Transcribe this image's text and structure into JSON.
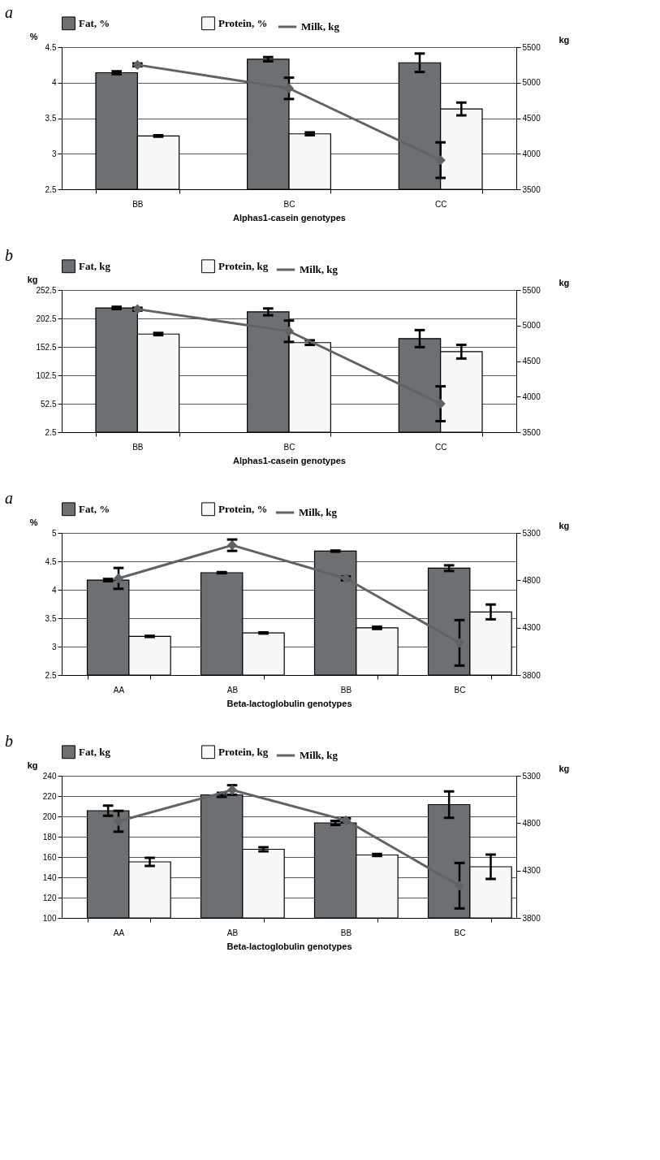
{
  "chart_data": [
    {
      "type": "bar",
      "annotations": [
        "a"
      ],
      "xlabel": "Alphas1-casein genotypes",
      "ylabel": "%",
      "y2label": "kg",
      "categories": [
        "BB",
        "BC",
        "CC"
      ],
      "series": [
        {
          "name": "Fat, %",
          "color": "#6d7073",
          "values": [
            4.14,
            4.33,
            4.28
          ],
          "errors": [
            0.02,
            0.03,
            0.13
          ]
        },
        {
          "name": "Protein,  %",
          "color": "#f8f8f8",
          "values": [
            3.25,
            3.28,
            3.63
          ],
          "errors": [
            0.01,
            0.02,
            0.09
          ]
        },
        {
          "name": "Milk, kg",
          "type": "line",
          "axis": "y2",
          "color": "#5f6366",
          "values": [
            5250,
            4920,
            3910
          ],
          "errors": [
            20,
            150,
            250
          ]
        }
      ],
      "ylim": [
        2.5,
        4.5
      ],
      "yticks": [
        2.5,
        3,
        3.5,
        4,
        4.5
      ],
      "y2lim": [
        3500,
        5500
      ],
      "y2ticks": [
        3500,
        4000,
        4500,
        5000,
        5500
      ],
      "grid": "y",
      "legend": "top",
      "marker": "diamond"
    },
    {
      "type": "bar",
      "annotations": [
        "b"
      ],
      "xlabel": "Alphas1-casein genotypes",
      "ylabel": "kg",
      "y2label": "kg",
      "categories": [
        "BB",
        "BC",
        "CC"
      ],
      "series": [
        {
          "name": "Fat, kg",
          "color": "#6d7073",
          "values": [
            221,
            214,
            167
          ],
          "errors": [
            2,
            6,
            15
          ]
        },
        {
          "name": "Protein, kg",
          "color": "#f8f8f8",
          "values": [
            175,
            160,
            144
          ],
          "errors": [
            2,
            4,
            12
          ]
        },
        {
          "name": "Milk, kg",
          "type": "line",
          "axis": "y2",
          "color": "#5f6366",
          "values": [
            5230,
            4920,
            3900
          ],
          "errors": [
            20,
            150,
            245
          ]
        }
      ],
      "ylim": [
        2.5,
        252.5
      ],
      "yticks": [
        2.5,
        52.5,
        102.5,
        152.5,
        202.5,
        252.5
      ],
      "y2lim": [
        3500,
        5500
      ],
      "y2ticks": [
        3500,
        4000,
        4500,
        5000,
        5500
      ],
      "grid": "y",
      "legend": "top",
      "marker": "diamond"
    },
    {
      "type": "bar",
      "annotations": [
        "a"
      ],
      "xlabel": "Beta-lactoglobulin genotypes",
      "ylabel": "%",
      "y2label": "kg",
      "categories": [
        "AA",
        "AB",
        "BB",
        "BC"
      ],
      "series": [
        {
          "name": "Fat, %",
          "color": "#6d7073",
          "values": [
            4.17,
            4.3,
            4.68,
            4.38
          ],
          "errors": [
            0.02,
            0.01,
            0.01,
            0.05
          ]
        },
        {
          "name": "Protein, %",
          "color": "#f8f8f8",
          "values": [
            3.18,
            3.24,
            3.33,
            3.61
          ],
          "errors": [
            0.01,
            0.01,
            0.02,
            0.13
          ]
        },
        {
          "name": "Milk, kg",
          "type": "line",
          "axis": "y2",
          "color": "#5f6366",
          "values": [
            4820,
            5170,
            4820,
            4140
          ],
          "errors": [
            110,
            60,
            20,
            240
          ]
        }
      ],
      "ylim": [
        2.5,
        5
      ],
      "yticks": [
        2.5,
        3,
        3.5,
        4,
        4.5,
        5
      ],
      "y2lim": [
        3800,
        5300
      ],
      "y2ticks": [
        3800,
        4300,
        4800,
        5300
      ],
      "grid": "y",
      "legend": "top",
      "marker": "diamond"
    },
    {
      "type": "bar",
      "annotations": [
        "b"
      ],
      "xlabel": "Beta-lactoglobulin genotypes",
      "ylabel": "kg",
      "y2label": "kg",
      "categories": [
        "AA",
        "AB",
        "BB",
        "BC"
      ],
      "series": [
        {
          "name": "Fat, kg",
          "color": "#6d7073",
          "values": [
            205.6,
            221.2,
            193.6,
            211.6
          ],
          "errors": [
            5,
            2,
            2,
            13
          ]
        },
        {
          "name": "Protein, kg",
          "color": "#f8f8f8",
          "values": [
            155.2,
            167.6,
            162,
            150.4
          ],
          "errors": [
            4,
            2,
            1,
            12
          ]
        },
        {
          "name": "Milk, kg",
          "type": "line",
          "axis": "y2",
          "color": "#5f6366",
          "values": [
            4820,
            5150,
            4830,
            4140
          ],
          "errors": [
            110,
            50,
            20,
            240
          ]
        }
      ],
      "ylim": [
        100,
        240
      ],
      "yticks": [
        100,
        120,
        140,
        160,
        180,
        200,
        220,
        240
      ],
      "y2lim": [
        3800,
        5300
      ],
      "y2ticks": [
        3800,
        4300,
        4800,
        5300
      ],
      "grid": "y",
      "legend": "top",
      "marker": "diamond"
    }
  ]
}
